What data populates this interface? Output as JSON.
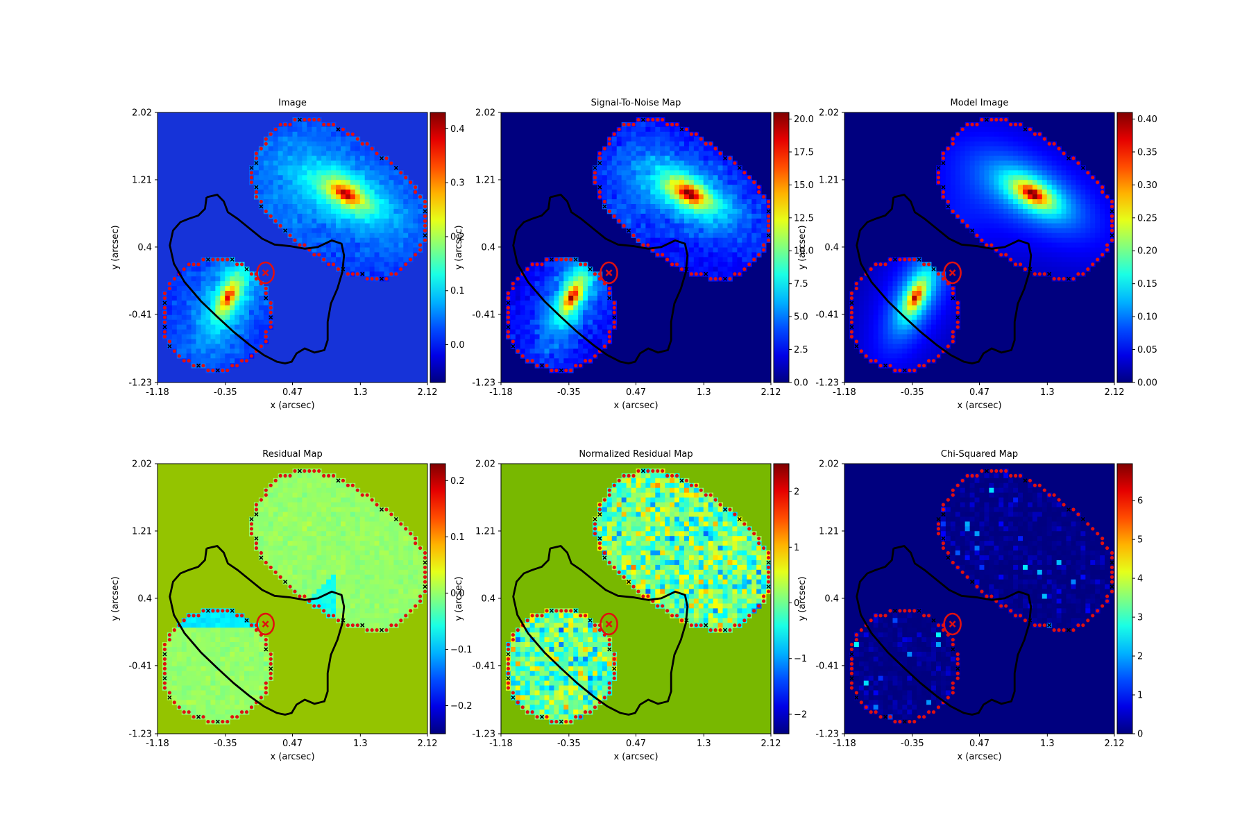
{
  "chart_data": [
    {
      "type": "heatmap",
      "title": "Image",
      "xlabel": "x (arcsec)",
      "ylabel": "y (arcsec)",
      "xticks": [
        "-1.18",
        "-0.35",
        "0.47",
        "1.3",
        "2.12"
      ],
      "yticks": [
        "2.02",
        "1.21",
        "0.4",
        "-0.41",
        "-1.23"
      ],
      "xlim": [
        -1.18,
        2.12
      ],
      "ylim": [
        -1.23,
        2.02
      ],
      "background": "#1633d8",
      "colorbar": {
        "range": [
          -0.07,
          0.43
        ],
        "ticks": [
          "0.4",
          "0.3",
          "0.2",
          "0.1",
          "0.0"
        ],
        "tick_values": [
          0.4,
          0.3,
          0.2,
          0.1,
          0.0
        ]
      },
      "fill_mode": "galaxy",
      "critical_curve": true
    },
    {
      "type": "heatmap",
      "title": "Signal-To-Noise Map",
      "xlabel": "x (arcsec)",
      "ylabel": "y (arcsec)",
      "xticks": [
        "-1.18",
        "-0.35",
        "0.47",
        "1.3",
        "2.12"
      ],
      "yticks": [
        "2.02",
        "1.21",
        "0.4",
        "-0.41",
        "-1.23"
      ],
      "xlim": [
        -1.18,
        2.12
      ],
      "ylim": [
        -1.23,
        2.02
      ],
      "background": "#00007f",
      "colorbar": {
        "range": [
          0.0,
          20.5
        ],
        "ticks": [
          "20.0",
          "17.5",
          "15.0",
          "12.5",
          "10.0",
          "7.5",
          "5.0",
          "2.5",
          "0.0"
        ],
        "tick_values": [
          20.0,
          17.5,
          15.0,
          12.5,
          10.0,
          7.5,
          5.0,
          2.5,
          0.0
        ]
      },
      "fill_mode": "snr",
      "critical_curve": true
    },
    {
      "type": "heatmap",
      "title": "Model Image",
      "xlabel": "x (arcsec)",
      "ylabel": "y (arcsec)",
      "xticks": [
        "-1.18",
        "-0.35",
        "0.47",
        "1.3",
        "2.12"
      ],
      "yticks": [
        "2.02",
        "1.21",
        "0.4",
        "-0.41",
        "-1.23"
      ],
      "xlim": [
        -1.18,
        2.12
      ],
      "ylim": [
        -1.23,
        2.02
      ],
      "background": "#00007f",
      "colorbar": {
        "range": [
          0.0,
          0.41
        ],
        "ticks": [
          "0.40",
          "0.35",
          "0.30",
          "0.25",
          "0.20",
          "0.15",
          "0.10",
          "0.05",
          "0.00"
        ],
        "tick_values": [
          0.4,
          0.35,
          0.3,
          0.25,
          0.2,
          0.15,
          0.1,
          0.05,
          0.0
        ]
      },
      "fill_mode": "model",
      "critical_curve": true
    },
    {
      "type": "heatmap",
      "title": "Residual Map",
      "xlabel": "x (arcsec)",
      "ylabel": "y (arcsec)",
      "xticks": [
        "-1.18",
        "-0.35",
        "0.47",
        "1.3",
        "2.12"
      ],
      "yticks": [
        "2.02",
        "1.21",
        "0.4",
        "-0.41",
        "-1.23"
      ],
      "xlim": [
        -1.18,
        2.12
      ],
      "ylim": [
        -1.23,
        2.02
      ],
      "background": "#94c400",
      "colorbar": {
        "range": [
          -0.25,
          0.23
        ],
        "ticks": [
          "0.2",
          "0.1",
          "0.0",
          "−0.1",
          "−0.2"
        ],
        "tick_values": [
          0.2,
          0.1,
          0.0,
          -0.1,
          -0.2
        ]
      },
      "fill_mode": "residual",
      "critical_curve": true
    },
    {
      "type": "heatmap",
      "title": "Normalized Residual Map",
      "xlabel": "x (arcsec)",
      "ylabel": "y (arcsec)",
      "xticks": [
        "-1.18",
        "-0.35",
        "0.47",
        "1.3",
        "2.12"
      ],
      "yticks": [
        "2.02",
        "1.21",
        "0.4",
        "-0.41",
        "-1.23"
      ],
      "xlim": [
        -1.18,
        2.12
      ],
      "ylim": [
        -1.23,
        2.02
      ],
      "background": "#78b800",
      "colorbar": {
        "range": [
          -2.35,
          2.5
        ],
        "ticks": [
          "2",
          "1",
          "0",
          "−1",
          "−2"
        ],
        "tick_values": [
          2,
          1,
          0,
          -1,
          -2
        ]
      },
      "fill_mode": "normres",
      "critical_curve": true
    },
    {
      "type": "heatmap",
      "title": "Chi-Squared Map",
      "xlabel": "x (arcsec)",
      "ylabel": "y (arcsec)",
      "xticks": [
        "-1.18",
        "-0.35",
        "0.47",
        "1.3",
        "2.12"
      ],
      "yticks": [
        "2.02",
        "1.21",
        "0.4",
        "-0.41",
        "-1.23"
      ],
      "xlim": [
        -1.18,
        2.12
      ],
      "ylim": [
        -1.23,
        2.02
      ],
      "background": "#00007f",
      "colorbar": {
        "range": [
          0.0,
          6.95
        ],
        "ticks": [
          "6",
          "5",
          "4",
          "3",
          "2",
          "1",
          "0"
        ],
        "tick_values": [
          6,
          5,
          4,
          3,
          2,
          1,
          0
        ]
      },
      "fill_mode": "chi",
      "critical_curve": true
    }
  ]
}
